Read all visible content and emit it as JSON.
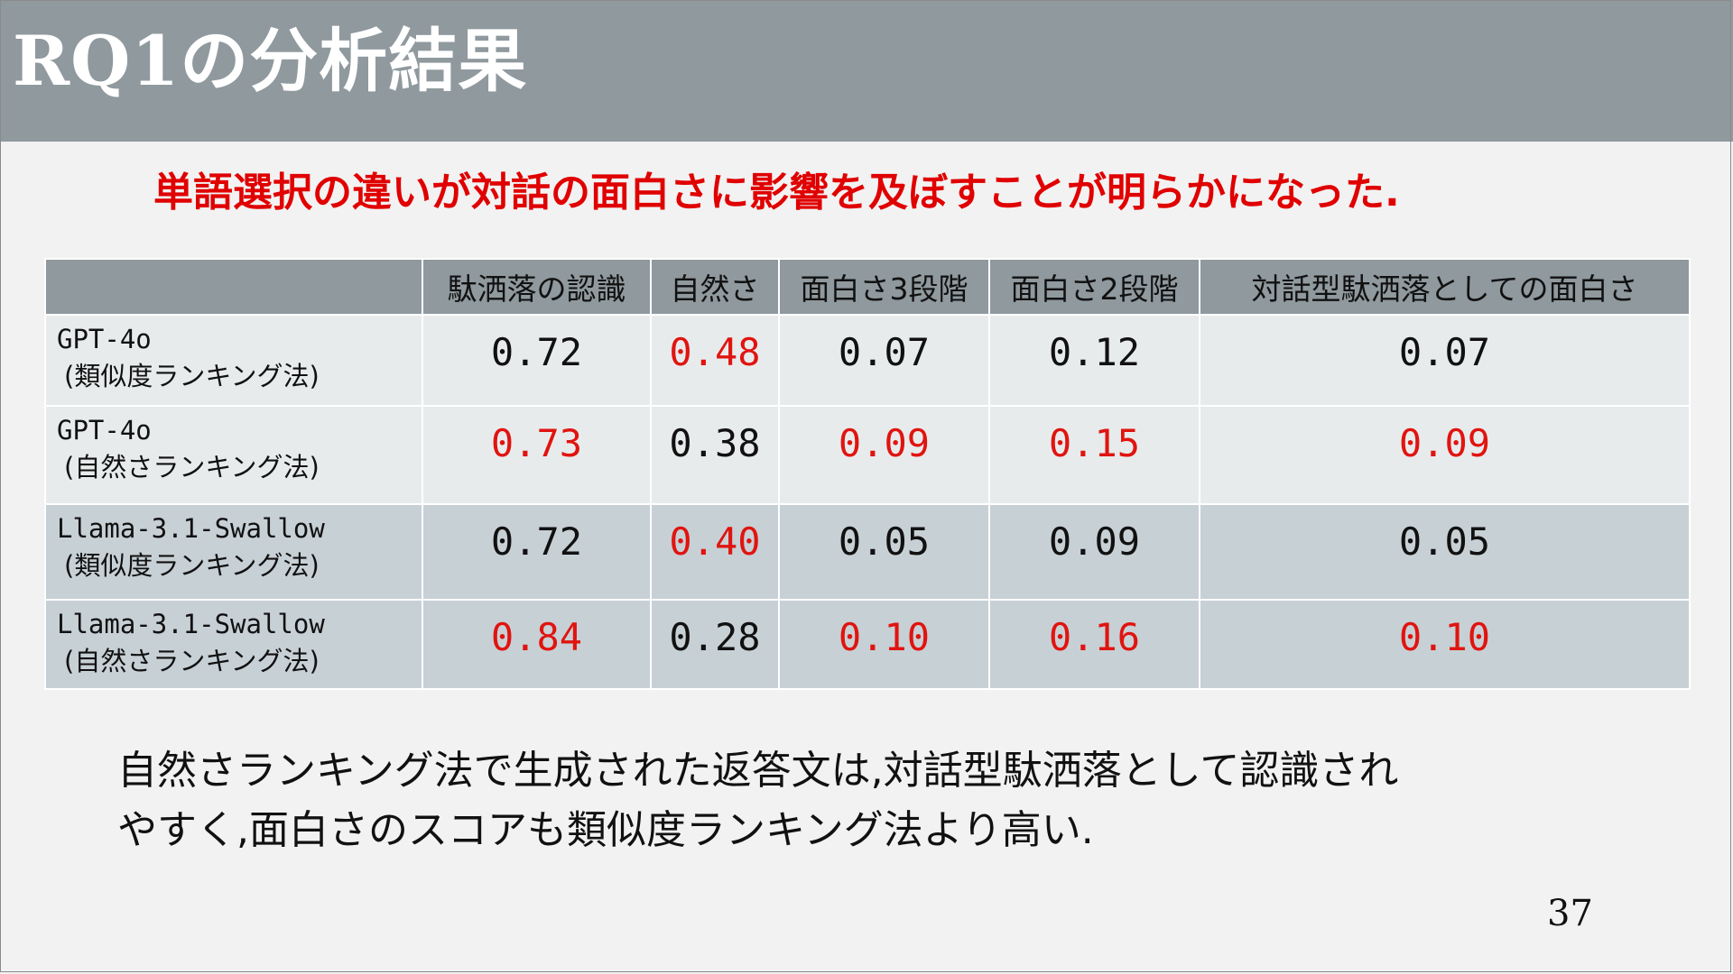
{
  "slide": {
    "title": "RQ1の分析結果",
    "headline": "単語選択の違いが対話の面白さに影響を及ぼすことが明らかになった.",
    "page_number": "37"
  },
  "table": {
    "columns": [
      "",
      "駄洒落の認識",
      "自然さ",
      "面白さ3段階",
      "面白さ2段階",
      "対話型駄洒落としての面白さ"
    ],
    "rows": [
      {
        "model": "GPT-4o",
        "method": "(類似度ランキング法)",
        "values": [
          "0.72",
          "0.48",
          "0.07",
          "0.12",
          "0.07"
        ],
        "highlight": [
          false,
          true,
          false,
          false,
          false
        ]
      },
      {
        "model": "GPT-4o",
        "method": "(自然さランキング法)",
        "values": [
          "0.73",
          "0.38",
          "0.09",
          "0.15",
          "0.09"
        ],
        "highlight": [
          true,
          false,
          true,
          true,
          true
        ]
      },
      {
        "model": "Llama-3.1-Swallow",
        "method": "(類似度ランキング法)",
        "values": [
          "0.72",
          "0.40",
          "0.05",
          "0.09",
          "0.05"
        ],
        "highlight": [
          false,
          true,
          false,
          false,
          false
        ]
      },
      {
        "model": "Llama-3.1-Swallow",
        "method": "(自然さランキング法)",
        "values": [
          "0.84",
          "0.28",
          "0.10",
          "0.16",
          "0.10"
        ],
        "highlight": [
          true,
          false,
          true,
          true,
          true
        ]
      }
    ]
  },
  "summary": {
    "line1": "自然さランキング法で生成された返答文は,対話型駄洒落として認識され",
    "line2": "やすく,面白さのスコアも類似度ランキング法より高い."
  },
  "colors": {
    "header_bar": "#8f999e",
    "highlight_text": "#e0140f",
    "row_light": "#e8ebec",
    "row_dark": "#c7d0d5",
    "background": "#f2f2f2"
  }
}
